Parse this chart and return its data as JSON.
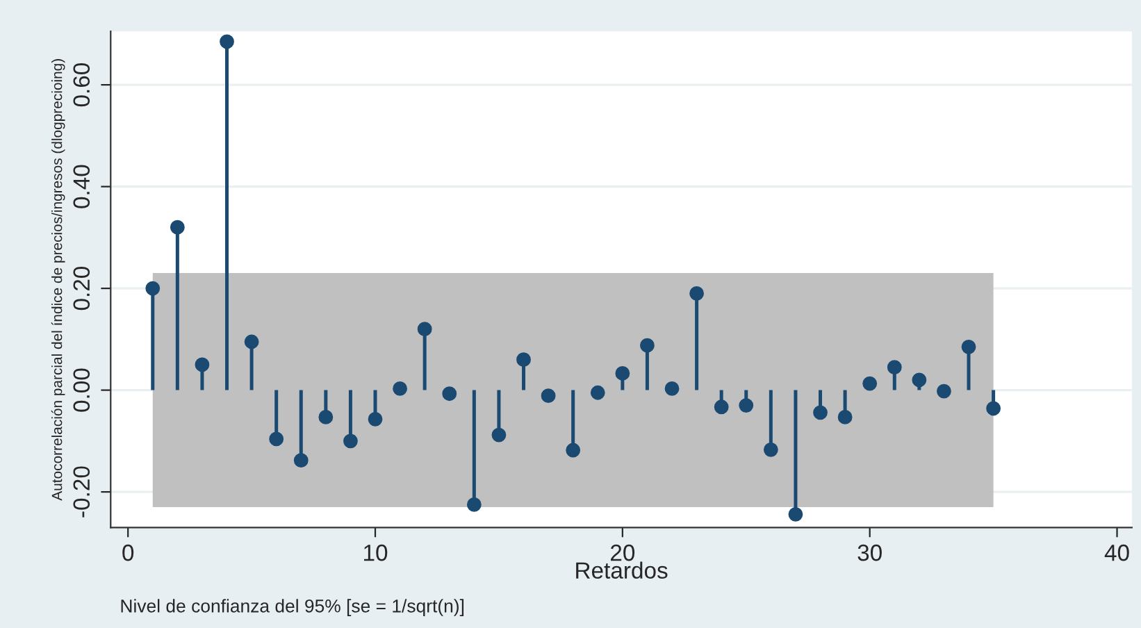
{
  "chart_data": {
    "type": "lollipop",
    "xlabel": "Retardos",
    "ylabel": "Autocorrelación parcial del índice de precios/ingresos (dlogprecioing)",
    "annotations": [
      "Nivel de confianza del 95% [se = 1/sqrt(n)]"
    ],
    "x": [
      1,
      2,
      3,
      4,
      5,
      6,
      7,
      8,
      9,
      10,
      11,
      12,
      13,
      14,
      15,
      16,
      17,
      18,
      19,
      20,
      21,
      22,
      23,
      24,
      25,
      26,
      27,
      28,
      29,
      30,
      31,
      32,
      33,
      34,
      35
    ],
    "series": [
      {
        "color": "#1a4a72",
        "values": [
          0.2,
          0.32,
          0.05,
          0.685,
          0.095,
          -0.096,
          -0.138,
          -0.053,
          -0.1,
          -0.057,
          0.003,
          0.12,
          -0.007,
          -0.225,
          -0.088,
          0.06,
          -0.011,
          -0.118,
          -0.005,
          0.033,
          0.088,
          0.003,
          0.19,
          -0.033,
          -0.03,
          -0.117,
          -0.244,
          -0.044,
          -0.053,
          0.013,
          0.045,
          0.02,
          -0.002,
          0.085,
          -0.036
        ]
      }
    ],
    "bands": [
      {
        "axis": "y",
        "from": -0.23,
        "to": 0.23,
        "color": "#c0c0c0"
      }
    ],
    "xlim": [
      -0.7,
      40.6
    ],
    "ylim": [
      -0.27,
      0.705
    ],
    "xticks": [
      0,
      10,
      20,
      30,
      40
    ],
    "yticks": [
      {
        "value": -0.2,
        "label": "-0.20"
      },
      {
        "value": 0,
        "label": "0.00"
      },
      {
        "value": 0.2,
        "label": "0.20"
      },
      {
        "value": 0.4,
        "label": "0.40"
      },
      {
        "value": 0.6,
        "label": "0.60"
      }
    ],
    "grid": "y",
    "marker": "circle",
    "legend": false
  }
}
